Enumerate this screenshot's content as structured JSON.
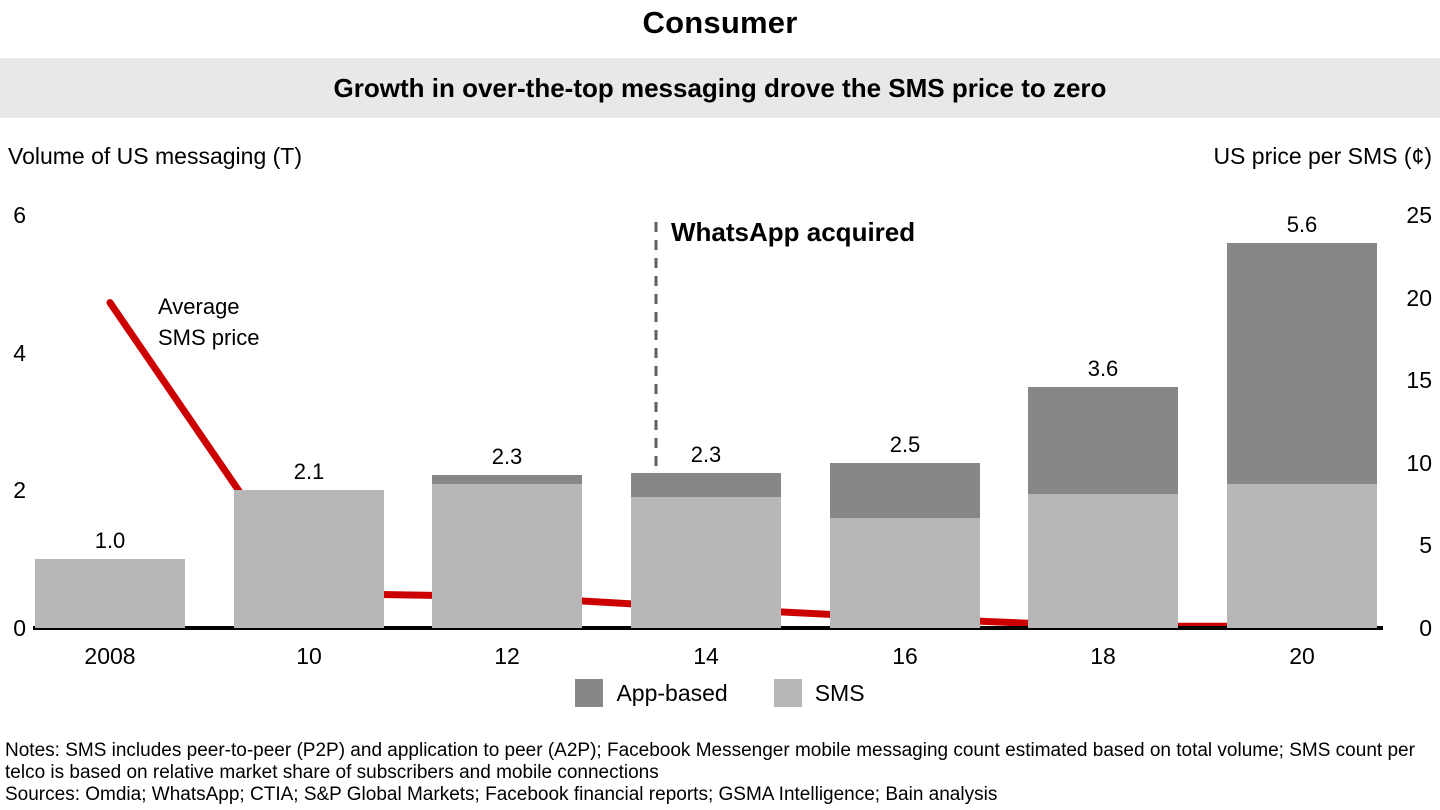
{
  "header": {
    "title": "Consumer",
    "subtitle": "Growth in over-the-top messaging drove the SMS price to zero"
  },
  "axes": {
    "left_caption": "Volume of US messaging (T)",
    "right_caption": "US price per SMS (¢)",
    "left_ticks": [
      6,
      4,
      2,
      0
    ],
    "right_ticks": [
      25,
      20,
      15,
      10,
      5,
      0
    ]
  },
  "chart_data": {
    "type": "combo-stacked-bar-line",
    "categories": [
      "2008",
      "10",
      "12",
      "14",
      "16",
      "18",
      "20"
    ],
    "series": [
      {
        "name": "SMS",
        "type": "bar",
        "axis": "left",
        "color": "#b7b7b7",
        "values": [
          1.0,
          2.0,
          2.1,
          1.9,
          1.6,
          1.95,
          2.1
        ]
      },
      {
        "name": "App-based",
        "type": "bar",
        "axis": "left",
        "color": "#878787",
        "values": [
          0.0,
          0.0,
          0.13,
          0.35,
          0.8,
          1.55,
          3.5
        ]
      },
      {
        "name": "Average SMS price",
        "type": "line",
        "axis": "right",
        "color": "#cc0000",
        "values": [
          19.7,
          2.1,
          1.9,
          1.2,
          0.6,
          0.1,
          0.1
        ]
      }
    ],
    "bar_total_labels": [
      "1.0",
      "2.1",
      "2.3",
      "2.3",
      "2.5",
      "3.6",
      "5.6"
    ],
    "title": "Growth in over-the-top messaging drove the SMS price to zero",
    "ylabel_left": "Volume of US messaging (T)",
    "ylabel_right": "US price per SMS (¢)",
    "ylim_left": [
      0,
      6
    ],
    "ylim_right": [
      0,
      25
    ],
    "grid": false,
    "legend_position": "bottom-center",
    "annotation_dashed_line_x": "between 2013 and 2014"
  },
  "annotations": {
    "whatsapp_label": "WhatsApp acquired",
    "avg_price_line_1": "Average",
    "avg_price_line_2": "SMS price"
  },
  "legend": [
    {
      "label": "App-based",
      "color": "#878787"
    },
    {
      "label": "SMS",
      "color": "#b7b7b7"
    }
  ],
  "footer": {
    "notes": "Notes: SMS includes peer-to-peer (P2P) and application to peer (A2P); Facebook Messenger mobile messaging count estimated based on total volume; SMS count per telco is based on relative market share of subscribers and mobile connections",
    "sources": "Sources: Omdia; WhatsApp; CTIA; S&P Global Markets; Facebook financial reports; GSMA Intelligence; Bain analysis"
  },
  "colors": {
    "sms_bar": "#b7b7b7",
    "app_bar": "#878787",
    "price_line": "#cc0000",
    "subtitle_band": "#e8e8e8",
    "dashed_line": "#5f5f5f",
    "axis_line": "#000000"
  }
}
